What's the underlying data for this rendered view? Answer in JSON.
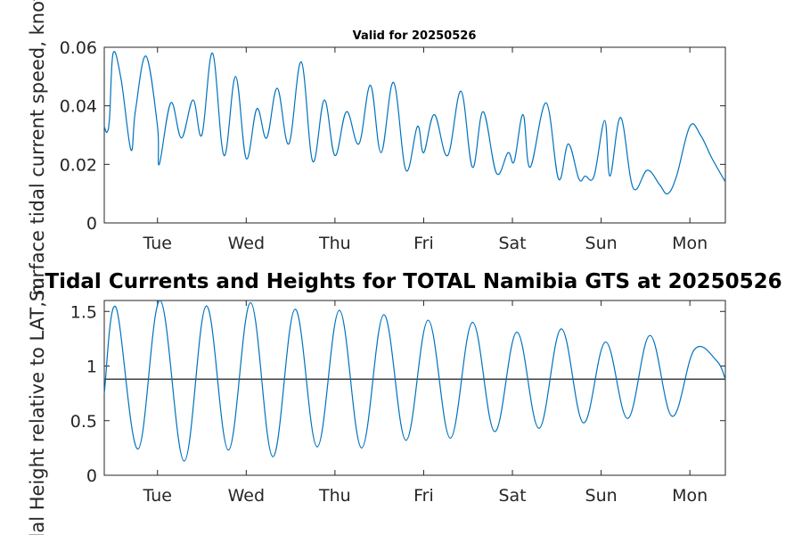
{
  "figure_title": "Tidal Currents and Heights for TOTAL Namibia GTS at 20250526",
  "chart_data": [
    {
      "type": "line",
      "title": "Valid for 20250526",
      "ylabel": "Surface tidal current speed, knots",
      "xlabel": "",
      "x_unit": "days",
      "xlim": [
        0,
        7.0
      ],
      "ylim": [
        0,
        0.06
      ],
      "yticks": [
        0,
        0.02,
        0.04,
        0.06
      ],
      "ytick_labels": [
        "0",
        "0.02",
        "0.04",
        "0.06"
      ],
      "xticks": [
        0.6,
        1.6,
        2.6,
        3.6,
        4.6,
        5.6,
        6.6
      ],
      "xtick_labels": [
        "Tue",
        "Wed",
        "Thu",
        "Fri",
        "Sat",
        "Sun",
        "Mon"
      ],
      "color": "#0072BD",
      "x": [
        0,
        0.03,
        0.06,
        0.1,
        0.19,
        0.3,
        0.35,
        0.47,
        0.6,
        0.62,
        0.75,
        0.87,
        1.0,
        1.1,
        1.22,
        1.35,
        1.48,
        1.6,
        1.72,
        1.83,
        1.95,
        2.08,
        2.22,
        2.35,
        2.48,
        2.6,
        2.73,
        2.87,
        3.0,
        3.12,
        3.26,
        3.4,
        3.53,
        3.6,
        3.72,
        3.87,
        4.02,
        4.15,
        4.27,
        4.42,
        4.55,
        4.62,
        4.72,
        4.8,
        4.98,
        5.12,
        5.23,
        5.35,
        5.42,
        5.52,
        5.64,
        5.7,
        5.82,
        5.96,
        6.12,
        6.26,
        6.35,
        6.45,
        6.6,
        6.72,
        6.85,
        7.0
      ],
      "y": [
        0.033,
        0.031,
        0.036,
        0.058,
        0.049,
        0.025,
        0.038,
        0.057,
        0.033,
        0.02,
        0.041,
        0.029,
        0.042,
        0.03,
        0.058,
        0.023,
        0.05,
        0.022,
        0.039,
        0.029,
        0.046,
        0.027,
        0.055,
        0.021,
        0.042,
        0.023,
        0.038,
        0.027,
        0.047,
        0.024,
        0.048,
        0.018,
        0.033,
        0.024,
        0.037,
        0.023,
        0.045,
        0.019,
        0.038,
        0.017,
        0.024,
        0.021,
        0.037,
        0.019,
        0.041,
        0.015,
        0.027,
        0.015,
        0.016,
        0.016,
        0.035,
        0.016,
        0.036,
        0.012,
        0.018,
        0.013,
        0.01,
        0.016,
        0.033,
        0.03,
        0.022,
        0.014
      ]
    },
    {
      "type": "line",
      "title": "",
      "ylabel": "Tidal Height relative to LAT, m",
      "xlabel": "",
      "x_unit": "days",
      "xlim": [
        0,
        7.0
      ],
      "ylim": [
        0,
        1.6
      ],
      "yticks": [
        0,
        0.5,
        1,
        1.5
      ],
      "ytick_labels": [
        "0",
        "0.5",
        "1",
        "1.5"
      ],
      "xticks": [
        0.6,
        1.6,
        2.6,
        3.6,
        4.6,
        5.6,
        6.6
      ],
      "xtick_labels": [
        "Tue",
        "Wed",
        "Thu",
        "Fri",
        "Sat",
        "Sun",
        "Mon"
      ],
      "color": "#0072BD",
      "reference_line": 0.88,
      "reference_color": "#404040",
      "x": [
        0,
        0.13,
        0.38,
        0.63,
        0.9,
        1.15,
        1.4,
        1.65,
        1.9,
        2.15,
        2.4,
        2.65,
        2.9,
        3.15,
        3.4,
        3.65,
        3.9,
        4.15,
        4.4,
        4.65,
        4.9,
        5.15,
        5.4,
        5.65,
        5.9,
        6.15,
        6.4,
        6.65,
        6.9,
        7.0
      ],
      "y": [
        0.75,
        1.54,
        0.24,
        1.61,
        0.13,
        1.55,
        0.23,
        1.58,
        0.17,
        1.52,
        0.26,
        1.51,
        0.25,
        1.47,
        0.32,
        1.42,
        0.34,
        1.4,
        0.4,
        1.31,
        0.43,
        1.34,
        0.48,
        1.22,
        0.52,
        1.28,
        0.54,
        1.15,
        1.05,
        0.88
      ]
    }
  ]
}
